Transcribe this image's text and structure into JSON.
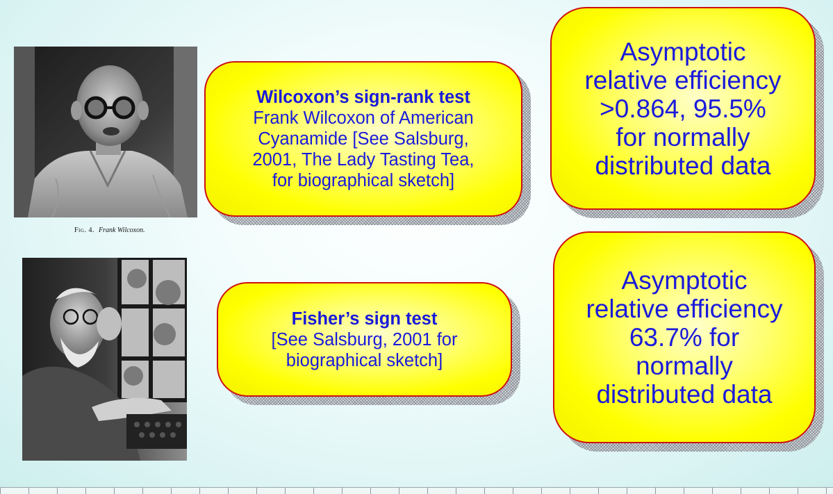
{
  "wilcoxon": {
    "title": "Wilcoxon’s sign-rank test",
    "lines": [
      "Frank Wilcoxon of American",
      "Cyanamide [See Salsburg,",
      "2001, The Lady Tasting Tea,",
      "for biographical sketch]"
    ],
    "photo_caption": {
      "fig": "Fig. 4.",
      "name": "Frank Wilcoxon."
    }
  },
  "fisher": {
    "title": "Fisher’s sign test",
    "lines": [
      "[See Salsburg, 2001 for",
      "biographical sketch]"
    ]
  },
  "efficiency_top": {
    "lines": [
      "Asymptotic",
      "relative efficiency",
      ">0.864, 95.5%",
      "for normally",
      "distributed data"
    ]
  },
  "efficiency_bottom": {
    "lines": [
      "Asymptotic",
      "relative efficiency",
      "63.7% for",
      "normally",
      "distributed data"
    ]
  },
  "colors": {
    "callout_fill": "#ffff00",
    "callout_border": "#cc1111",
    "text": "#1a1adb",
    "background": "#e0f6f6"
  }
}
